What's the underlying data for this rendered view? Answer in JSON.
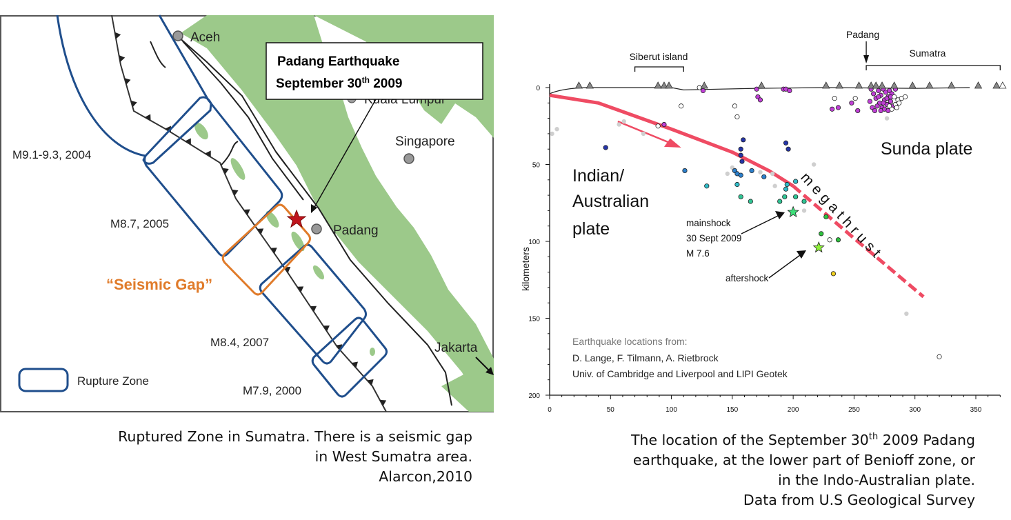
{
  "map": {
    "callout": {
      "line1": "Padang  Earthquake",
      "line2_pre": "September 30",
      "line2_sup": "th",
      "line2_post": " 2009"
    },
    "cities": {
      "aceh": "Aceh",
      "kuala_lumpur": "Kuala Lumpur",
      "singapore": "Singapore",
      "padang": "Padang",
      "jakarta": "Jakarta"
    },
    "zones": {
      "z2004": "M9.1-9.3, 2004",
      "z2005": "M8.7, 2005",
      "gap": "“Seismic Gap”",
      "z2007": "M8.4, 2007",
      "z2000": "M7.9, 2000"
    },
    "legend": "Rupture Zone",
    "colors": {
      "land": "#9cc98a",
      "zone": "#1f4e8c",
      "gap": "#e07b2a",
      "star": "#c0141c"
    }
  },
  "caption_left": {
    "line1": "Ruptured Zone in Sumatra. There is a seismic gap",
    "line2": "in West Sumatra area.",
    "line3": "Alarcon,2010"
  },
  "caption_right": {
    "line1_pre": "The location of the September 30",
    "line1_sup": "th",
    "line1_post": " 2009 Padang",
    "line2": "earthquake, at the lower part of Benioff zone, or",
    "line3": "in the Indo-Australian plate.",
    "line4": "Data from U.S Geological Survey"
  },
  "chart_data": {
    "type": "scatter",
    "ylabel": "kilometers",
    "xlim": [
      0,
      370
    ],
    "ylim": [
      200,
      0
    ],
    "x_ticks": [
      "0",
      "50",
      "100",
      "150",
      "200",
      "250",
      "300",
      "350"
    ],
    "y_ticks": [
      "0",
      "50",
      "100",
      "150",
      "200"
    ],
    "x_tick_values": [
      0,
      50,
      100,
      150,
      200,
      250,
      300,
      350
    ],
    "y_tick_values": [
      0,
      50,
      100,
      150,
      200
    ],
    "top_labels": {
      "siberut": "Siberut island",
      "siberut_range": [
        70,
        110
      ],
      "padang": "Padang",
      "padang_x": 260,
      "sumatra": "Sumatra",
      "sumatra_range": [
        260,
        370
      ]
    },
    "plate_labels": {
      "indian_1": "Indian/",
      "indian_2": "Australian",
      "indian_3": "plate",
      "sunda": "Sunda plate",
      "megathrust": "megathrust"
    },
    "annotations": {
      "main_1": "mainshock",
      "main_2": "30 Sept 2009",
      "main_3": "M 7.6",
      "after": "aftershock"
    },
    "credits": {
      "line1": "Earthquake locations from:",
      "line2": "D. Lange, F. Tilmann, A. Rietbrock",
      "line3": "Univ. of Cambridge and Liverpool and LIPI Geotek"
    },
    "volcanoes_x": [
      24,
      33,
      89,
      94,
      98,
      127,
      174,
      227,
      238,
      254,
      264,
      268,
      273,
      283,
      298,
      312,
      330,
      352,
      367
    ],
    "megathrust_solid": [
      [
        0,
        5
      ],
      [
        40,
        10
      ],
      [
        100,
        27
      ],
      [
        150,
        42
      ],
      [
        180,
        54
      ],
      [
        200,
        64
      ]
    ],
    "megathrust_dashed": [
      [
        200,
        64
      ],
      [
        250,
        98
      ],
      [
        307,
        136
      ]
    ],
    "mainshock": [
      200,
      81
    ],
    "aftershock": [
      221,
      104
    ],
    "series": [
      {
        "name": "gray",
        "color": "#cfcfcf",
        "points": [
          [
            2,
            30
          ],
          [
            6,
            27
          ],
          [
            57,
            24
          ],
          [
            61,
            22
          ],
          [
            77,
            30
          ],
          [
            146,
            56
          ],
          [
            150,
            52
          ],
          [
            173,
            55
          ],
          [
            183,
            56
          ],
          [
            185,
            64
          ],
          [
            217,
            50
          ],
          [
            209,
            80
          ],
          [
            277,
            20
          ],
          [
            293,
            147
          ]
        ]
      },
      {
        "name": "purple",
        "color": "#c03fd6",
        "points": [
          [
            126,
            2
          ],
          [
            170,
            1
          ],
          [
            171,
            6
          ],
          [
            173,
            8
          ],
          [
            192,
            1
          ],
          [
            194,
            1
          ],
          [
            197,
            2
          ],
          [
            94,
            24
          ],
          [
            232,
            14
          ],
          [
            237,
            13
          ],
          [
            248,
            10
          ],
          [
            253,
            15
          ],
          [
            264,
            1
          ],
          [
            266,
            4
          ],
          [
            268,
            7
          ],
          [
            270,
            2
          ],
          [
            271,
            10
          ],
          [
            272,
            5
          ],
          [
            273,
            13
          ],
          [
            274,
            1
          ],
          [
            275,
            8
          ],
          [
            276,
            3
          ],
          [
            277,
            11
          ],
          [
            278,
            6
          ],
          [
            279,
            2
          ],
          [
            280,
            9
          ],
          [
            281,
            4
          ],
          [
            282,
            12
          ],
          [
            263,
            9
          ],
          [
            265,
            13
          ],
          [
            267,
            15
          ],
          [
            269,
            12
          ],
          [
            272,
            15
          ],
          [
            275,
            14
          ],
          [
            278,
            15
          ],
          [
            270,
            6
          ],
          [
            274,
            10
          ],
          [
            277,
            7
          ],
          [
            280,
            6
          ],
          [
            284,
            1
          ]
        ]
      },
      {
        "name": "hollow",
        "color": "#ffffff",
        "points": [
          [
            123,
            0
          ],
          [
            108,
            12
          ],
          [
            89,
            25
          ],
          [
            152,
            12
          ],
          [
            154,
            19
          ],
          [
            234,
            7
          ],
          [
            251,
            7
          ],
          [
            230,
            99
          ],
          [
            320,
            175
          ],
          [
            283,
            6
          ],
          [
            286,
            8
          ],
          [
            289,
            7
          ],
          [
            292,
            6
          ],
          [
            284,
            11
          ],
          [
            281,
            14
          ],
          [
            285,
            13
          ],
          [
            279,
            12
          ],
          [
            287,
            10
          ]
        ]
      },
      {
        "name": "darkblue",
        "color": "#2535a8",
        "points": [
          [
            46,
            39
          ],
          [
            159,
            34
          ],
          [
            157,
            40
          ],
          [
            157,
            44
          ],
          [
            158,
            48
          ],
          [
            194,
            36
          ],
          [
            196,
            40
          ]
        ]
      },
      {
        "name": "blue",
        "color": "#2c80cc",
        "points": [
          [
            111,
            54
          ],
          [
            152,
            54
          ],
          [
            154,
            56
          ],
          [
            157,
            57
          ],
          [
            166,
            54
          ],
          [
            176,
            58
          ]
        ]
      },
      {
        "name": "teal",
        "color": "#30bcc8",
        "points": [
          [
            129,
            64
          ],
          [
            154,
            63
          ],
          [
            195,
            63
          ],
          [
            194,
            66
          ],
          [
            202,
            61
          ]
        ]
      },
      {
        "name": "seagreen",
        "color": "#2fc494",
        "points": [
          [
            157,
            71
          ],
          [
            165,
            74
          ],
          [
            189,
            74
          ],
          [
            193,
            71
          ],
          [
            202,
            71
          ],
          [
            209,
            74
          ]
        ]
      },
      {
        "name": "green",
        "color": "#2fc23f",
        "points": [
          [
            227,
            84
          ],
          [
            223,
            95
          ],
          [
            237,
            99
          ]
        ]
      },
      {
        "name": "yellow",
        "color": "#f0d020",
        "points": [
          [
            233,
            121
          ]
        ]
      }
    ]
  }
}
